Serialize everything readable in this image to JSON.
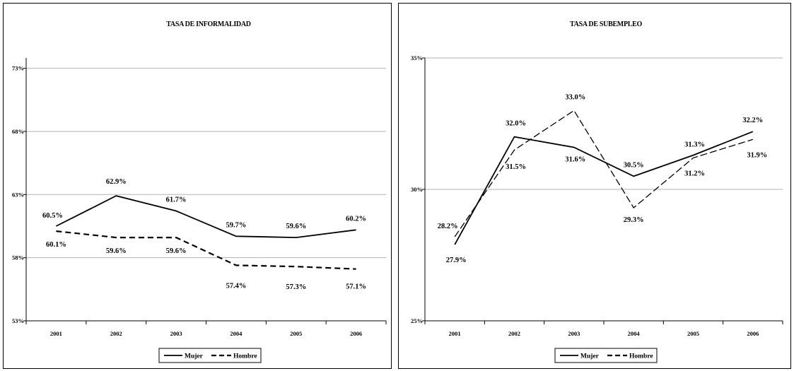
{
  "chart_data": [
    {
      "type": "line",
      "title": "TASA DE INFORMALIDAD",
      "categories": [
        "2001",
        "2002",
        "2003",
        "2004",
        "2005",
        "2006"
      ],
      "yticks": [
        "53%",
        "58%",
        "63%",
        "68%",
        "73%"
      ],
      "ylim": [
        53,
        76
      ],
      "grid": true,
      "legend_position": "bottom",
      "series": [
        {
          "name": "Mujer",
          "line": "solid",
          "values": [
            60.5,
            62.9,
            61.7,
            59.7,
            59.6,
            60.2
          ],
          "labels": [
            "60.5%",
            "62.9%",
            "61.7%",
            "59.7%",
            "59.6%",
            "60.2%"
          ]
        },
        {
          "name": "Hombre",
          "line": "dashed",
          "values": [
            60.1,
            59.6,
            59.6,
            57.4,
            57.3,
            57.1
          ],
          "labels": [
            "60.1%",
            "59.6%",
            "59.6%",
            "57.4%",
            "57.3%",
            "57.1%"
          ]
        }
      ]
    },
    {
      "type": "line",
      "title": "TASA DE SUBEMPLEO",
      "categories": [
        "2001",
        "2002",
        "2003",
        "2004",
        "2005",
        "2006"
      ],
      "yticks": [
        "25%",
        "30%",
        "35%"
      ],
      "ylim": [
        25,
        35
      ],
      "grid": true,
      "legend_position": "bottom",
      "series": [
        {
          "name": "Mujer",
          "line": "solid",
          "values": [
            27.9,
            32.0,
            31.6,
            30.5,
            31.3,
            32.2
          ],
          "labels": [
            "27.9%",
            "32.0%",
            "31.6%",
            "30.5%",
            "31.3%",
            "32.2%"
          ]
        },
        {
          "name": "Hombre",
          "line": "dashed",
          "values": [
            28.2,
            31.5,
            33.0,
            29.3,
            31.2,
            31.9
          ],
          "labels": [
            "28.2%",
            "31.5%",
            "33.0%",
            "29.3%",
            "31.2%",
            "31.9%"
          ]
        }
      ]
    }
  ]
}
